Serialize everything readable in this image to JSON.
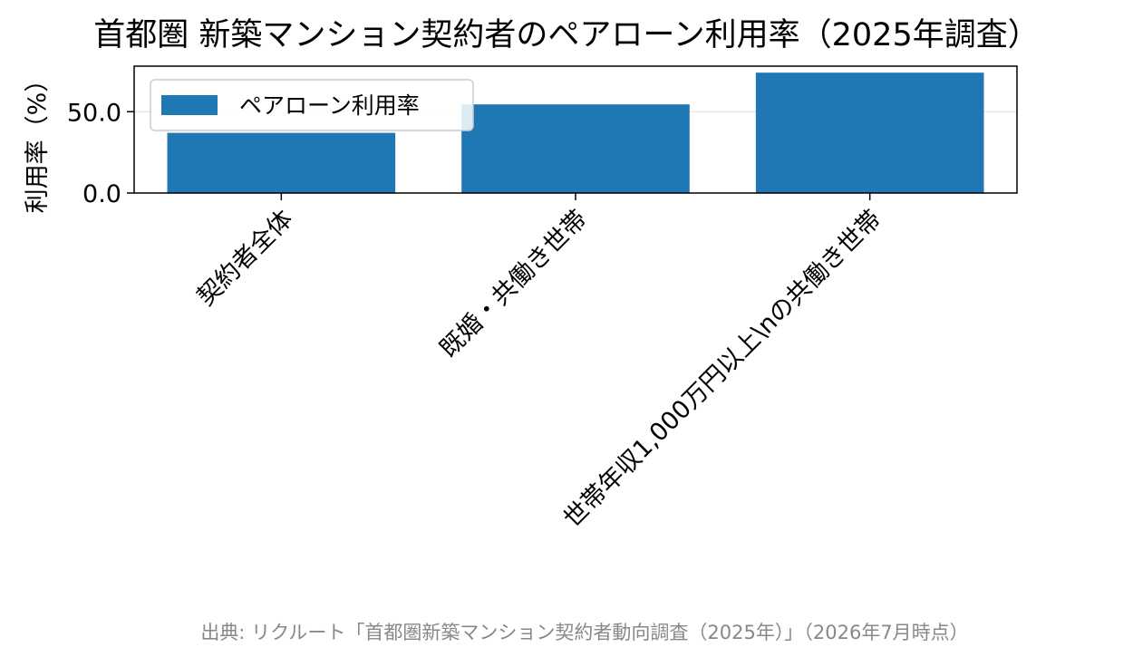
{
  "chart_data": {
    "type": "bar",
    "title": "首都圏 新築マンション契約者のペアローン利用率（2025年調査）",
    "xlabel": "",
    "ylabel": "利用率（%）",
    "categories": [
      "契約者全体",
      "既婚・共働き世帯",
      "世帯年収1,000万円以上\\nの共働き世帯"
    ],
    "series": [
      {
        "name": "ペアローン利用率",
        "values": [
          37,
          54.5,
          74
        ]
      }
    ],
    "ylim": [
      0,
      78
    ],
    "yticks": [
      0,
      50
    ],
    "ytick_labels": [
      "0.0",
      "50.0"
    ],
    "grid": "horizontal",
    "legend_position": "top-left",
    "bar_color": "#1f77b4"
  },
  "footer": {
    "source": "出典: リクルート「首都圏新築マンション契約者動向調査（2025年）」（2026年7月時点）"
  }
}
